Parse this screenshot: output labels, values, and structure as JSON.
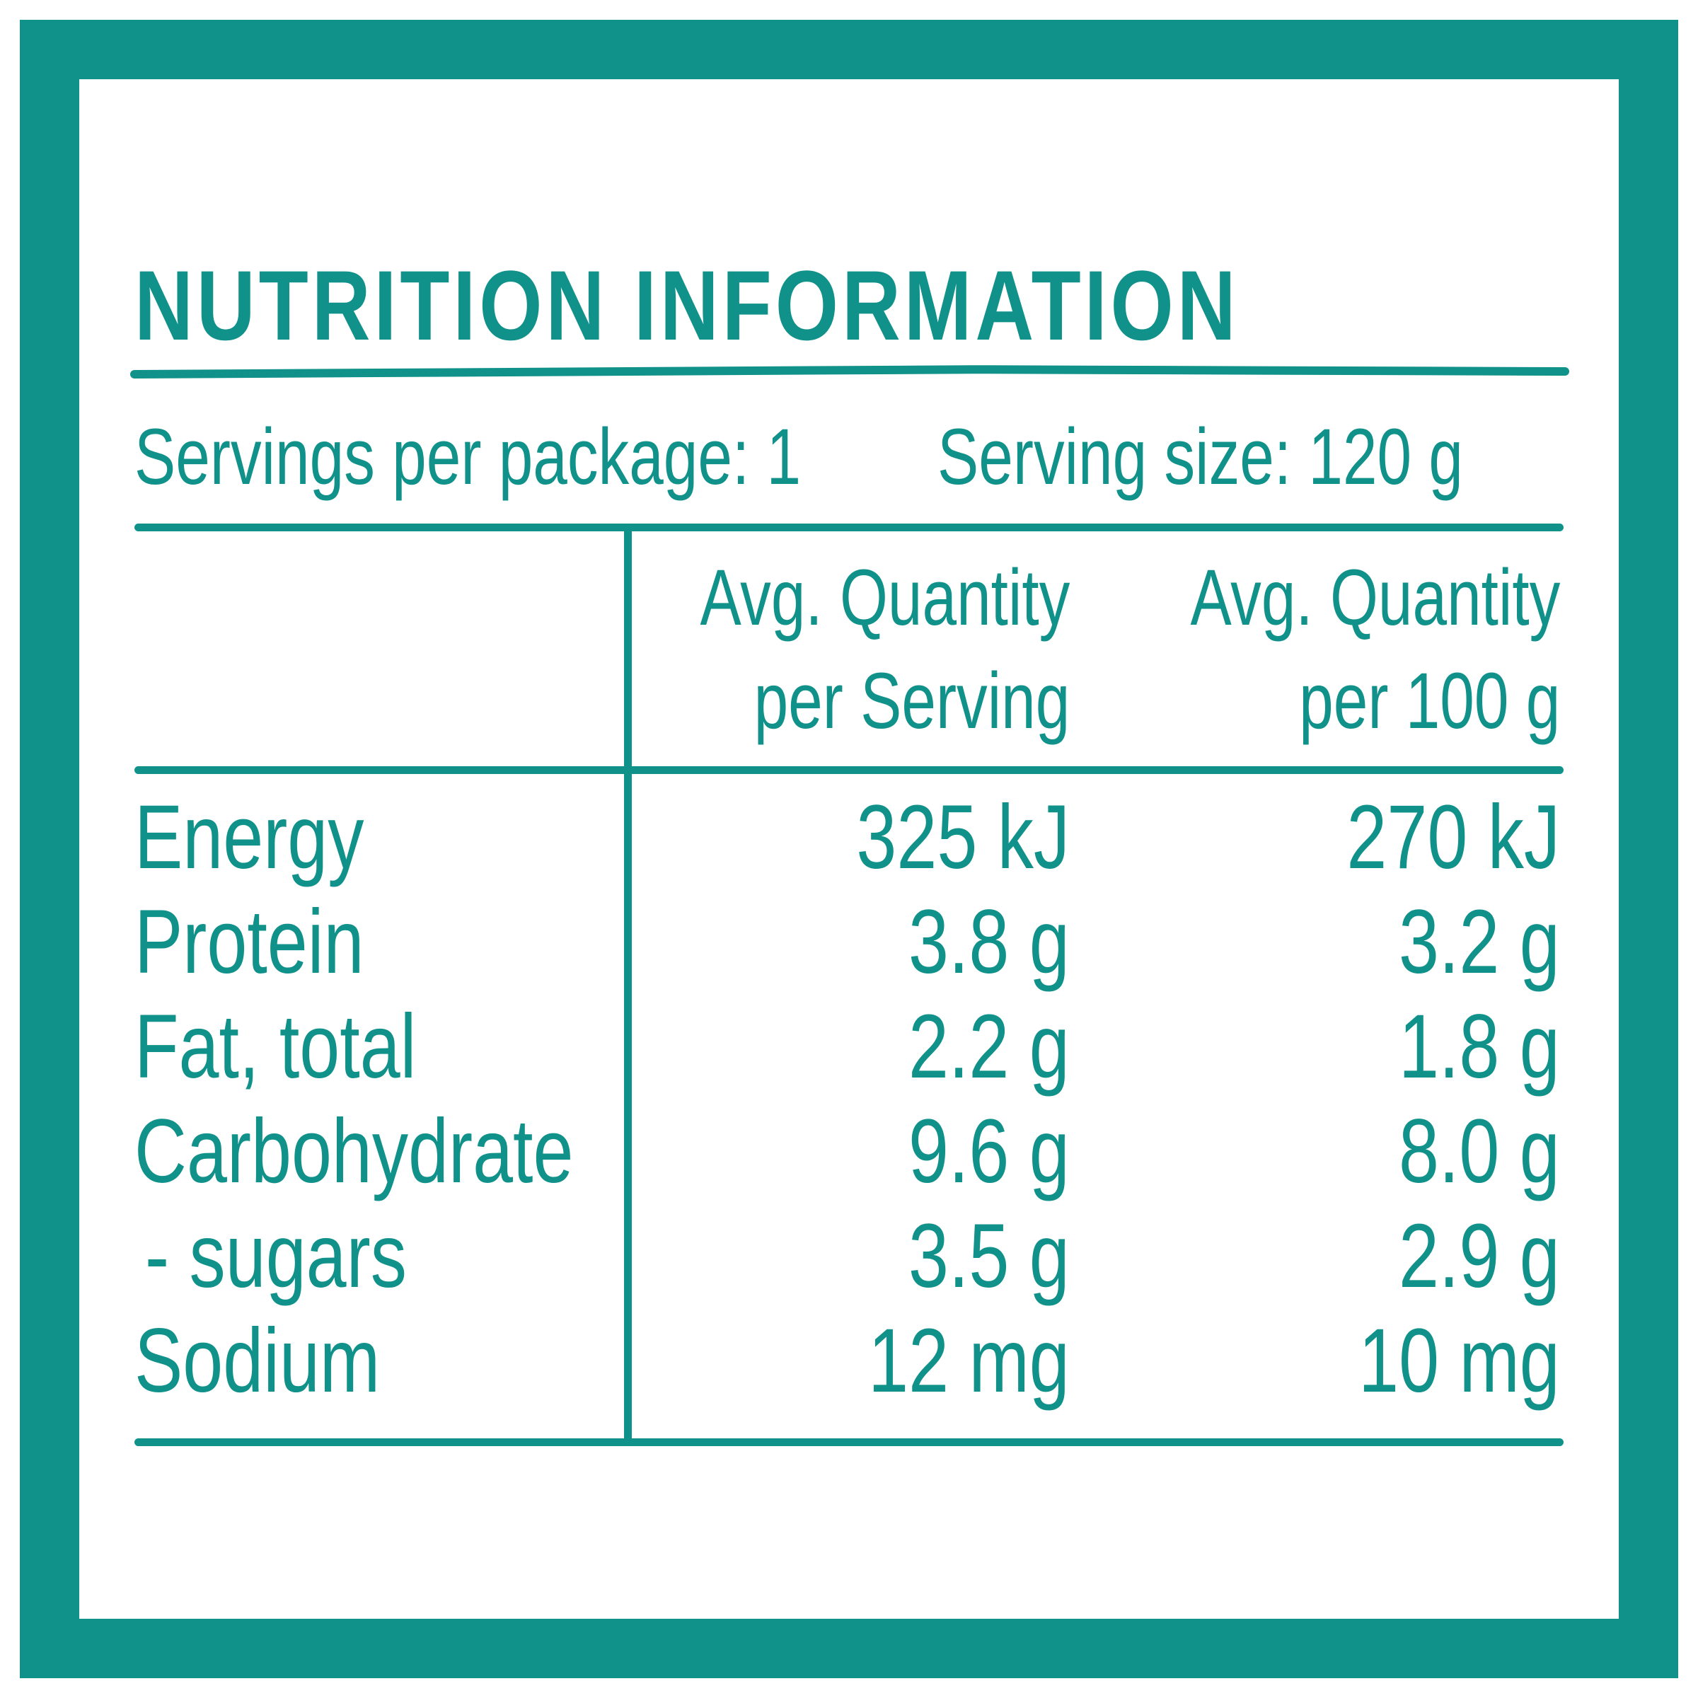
{
  "label": {
    "title": "NUTRITION INFORMATION",
    "servings_per_package": "Servings per package: 1",
    "serving_size": "Serving size: 120 g",
    "headers": {
      "per_serving_line1": "Avg. Quantity",
      "per_serving_line2": "per Serving",
      "per_100g_line1": "Avg. Quantity",
      "per_100g_line2": "per 100 g"
    },
    "rows": [
      {
        "name": "Energy",
        "per_serving": "325 kJ",
        "per_100g": "270 kJ"
      },
      {
        "name": "Protein",
        "per_serving": "3.8 g",
        "per_100g": "3.2 g"
      },
      {
        "name": "Fat, total",
        "per_serving": "2.2 g",
        "per_100g": "1.8 g"
      },
      {
        "name": "Carbohydrate",
        "per_serving": "9.6 g",
        "per_100g": "8.0 g"
      },
      {
        "name": "- sugars",
        "per_serving": "3.5 g",
        "per_100g": "2.9 g"
      },
      {
        "name": "Sodium",
        "per_serving": "12 mg",
        "per_100g": "10 mg"
      }
    ]
  },
  "colors": {
    "accent": "#10918a",
    "background": "#ffffff"
  }
}
